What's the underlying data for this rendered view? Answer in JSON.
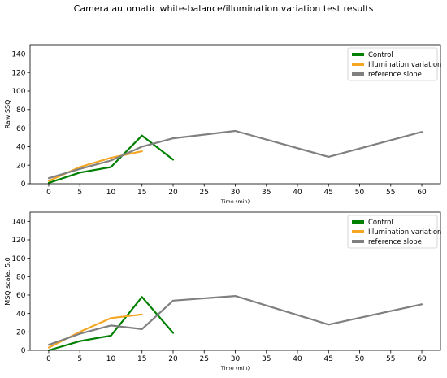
{
  "figure": {
    "title": "Camera automatic white-balance/illumination variation test results"
  },
  "chart_data": [
    {
      "type": "line",
      "title": "",
      "xlabel": "Time (min)",
      "ylabel": "Raw SSQ",
      "xlim": [
        -3,
        63
      ],
      "ylim": [
        0,
        150
      ],
      "xticks": [
        0,
        5,
        10,
        15,
        20,
        25,
        30,
        35,
        40,
        45,
        50,
        55,
        60
      ],
      "yticks": [
        0,
        20,
        40,
        60,
        80,
        100,
        120,
        140
      ],
      "grid": false,
      "legend_position": "top-right",
      "series": [
        {
          "name": "Control",
          "color": "#008000",
          "x": [
            0,
            5,
            10,
            15,
            20
          ],
          "y": [
            1,
            12,
            18,
            52,
            26
          ]
        },
        {
          "name": "Illumination variation",
          "color": "#f5a623",
          "x": [
            0,
            5,
            10,
            15
          ],
          "y": [
            3,
            18,
            28,
            35
          ]
        },
        {
          "name": "reference slope",
          "color": "#808080",
          "x": [
            0,
            5,
            10,
            15,
            20,
            30,
            45,
            60
          ],
          "y": [
            6,
            16,
            25,
            40,
            49,
            57,
            29,
            56
          ]
        }
      ]
    },
    {
      "type": "line",
      "title": "",
      "xlabel": "Time (min)",
      "ylabel": "MSQ scale: 5.0",
      "xlim": [
        -3,
        63
      ],
      "ylim": [
        0,
        150
      ],
      "xticks": [
        0,
        5,
        10,
        15,
        20,
        25,
        30,
        35,
        40,
        45,
        50,
        55,
        60
      ],
      "yticks": [
        0,
        20,
        40,
        60,
        80,
        100,
        120,
        140
      ],
      "grid": false,
      "legend_position": "top-right",
      "series": [
        {
          "name": "Control",
          "color": "#008000",
          "x": [
            0,
            5,
            10,
            15,
            20
          ],
          "y": [
            0,
            10,
            16,
            58,
            19
          ]
        },
        {
          "name": "Illumination variation",
          "color": "#f5a623",
          "x": [
            0,
            5,
            10,
            15
          ],
          "y": [
            3,
            20,
            35,
            39
          ]
        },
        {
          "name": "reference slope",
          "color": "#808080",
          "x": [
            0,
            5,
            10,
            15,
            20,
            30,
            45,
            60
          ],
          "y": [
            6,
            18,
            27,
            23,
            54,
            59,
            28,
            50
          ]
        }
      ]
    }
  ]
}
